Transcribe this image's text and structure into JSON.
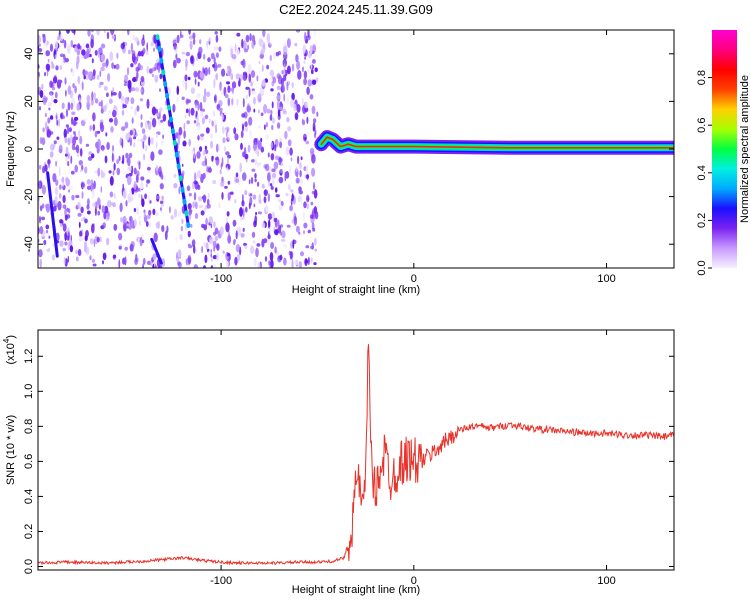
{
  "figure": {
    "title": "C2E2.2024.245.11.39.G09"
  },
  "chart_data": [
    {
      "type": "heatmap",
      "xlabel": "Height of straight line (km)",
      "ylabel": "Frequency (Hz)",
      "xlim": [
        -195,
        135
      ],
      "ylim": [
        -50,
        50
      ],
      "x_ticks": [
        -100,
        0,
        100
      ],
      "x_tick_labels": [
        "-100",
        "0",
        "100"
      ],
      "y_ticks": [
        -40,
        -20,
        0,
        20,
        40
      ],
      "y_tick_labels": [
        "-40",
        "-20",
        "0",
        "20",
        "40"
      ],
      "noise_region_x": [
        -195,
        -50
      ],
      "signal_track": [
        {
          "x": -48,
          "y": 2
        },
        {
          "x": -45,
          "y": 5
        },
        {
          "x": -42,
          "y": 4
        },
        {
          "x": -38,
          "y": 1
        },
        {
          "x": -34,
          "y": 2
        },
        {
          "x": -30,
          "y": 1
        },
        {
          "x": -25,
          "y": 1
        },
        {
          "x": -20,
          "y": 1
        },
        {
          "x": -10,
          "y": 1
        },
        {
          "x": 0,
          "y": 1
        },
        {
          "x": 50,
          "y": 0.5
        },
        {
          "x": 135,
          "y": 0.5
        }
      ],
      "streaks": [
        {
          "x1": -133,
          "y1": 47,
          "x2": -117,
          "y2": -32
        },
        {
          "x1": -136,
          "y1": -38,
          "x2": -131,
          "y2": -48
        },
        {
          "x1": -190,
          "y1": -10,
          "x2": -185,
          "y2": -45
        }
      ],
      "colorbar": {
        "label": "Normalized spectral amplitude",
        "range": [
          0.0,
          1.0
        ],
        "ticks": [
          0.0,
          0.2,
          0.4,
          0.6,
          0.8
        ],
        "tick_labels": [
          "0.0",
          "0.2",
          "0.4",
          "0.6",
          "0.8"
        ],
        "colors": [
          "#f6f0ff",
          "#c89bff",
          "#7a22f0",
          "#1a10ff",
          "#00aaff",
          "#00f0e0",
          "#00ff40",
          "#a8ff00",
          "#ffd000",
          "#ff4000",
          "#ff0000",
          "#ff0080",
          "#ff00d0"
        ]
      },
      "legend": "none"
    },
    {
      "type": "line",
      "xlabel": "Height of straight line (km)",
      "ylabel": "SNR (10 * v/v)",
      "y_exponent_label": "(x10",
      "y_exponent_power": "4",
      "y_exponent_close": ")",
      "xlim": [
        -195,
        135
      ],
      "ylim": [
        -0.02,
        1.35
      ],
      "x_ticks": [
        -100,
        0,
        100
      ],
      "x_tick_labels": [
        "-100",
        "0",
        "100"
      ],
      "y_ticks": [
        0.0,
        0.2,
        0.4,
        0.6,
        0.8,
        1.0,
        1.2
      ],
      "y_tick_labels": [
        "0.0",
        "0.2",
        "0.4",
        "0.6",
        "0.8",
        "1.0",
        "1.2"
      ],
      "series": [
        {
          "color": "#e8332a",
          "x": [
            -195,
            -180,
            -160,
            -140,
            -130,
            -120,
            -110,
            -100,
            -90,
            -80,
            -70,
            -60,
            -50,
            -42,
            -36,
            -32,
            -29,
            -27,
            -25,
            -23.5,
            -22,
            -20,
            -18,
            -15,
            -12,
            -9,
            -6,
            -3,
            0,
            3,
            6,
            10,
            15,
            20,
            25,
            30,
            35,
            40,
            45,
            50,
            55,
            60,
            70,
            80,
            90,
            100,
            110,
            120,
            130,
            135
          ],
          "y": [
            0.02,
            0.025,
            0.02,
            0.03,
            0.04,
            0.05,
            0.035,
            0.025,
            0.02,
            0.02,
            0.02,
            0.025,
            0.025,
            0.03,
            0.05,
            0.25,
            0.55,
            0.3,
            0.45,
            1.33,
            0.6,
            0.4,
            0.55,
            0.65,
            0.5,
            0.55,
            0.6,
            0.62,
            0.6,
            0.6,
            0.62,
            0.65,
            0.7,
            0.75,
            0.78,
            0.8,
            0.8,
            0.79,
            0.8,
            0.81,
            0.8,
            0.79,
            0.78,
            0.77,
            0.76,
            0.76,
            0.75,
            0.75,
            0.74,
            0.75
          ]
        }
      ],
      "legend": "none"
    }
  ]
}
